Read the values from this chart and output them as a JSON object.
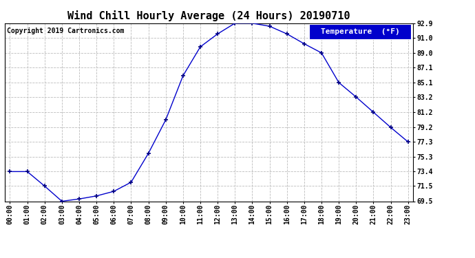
{
  "title": "Wind Chill Hourly Average (24 Hours) 20190710",
  "copyright": "Copyright 2019 Cartronics.com",
  "legend_label": "Temperature  (°F)",
  "hours": [
    0,
    1,
    2,
    3,
    4,
    5,
    6,
    7,
    8,
    9,
    10,
    11,
    12,
    13,
    14,
    15,
    16,
    17,
    18,
    19,
    20,
    21,
    22,
    23
  ],
  "x_labels": [
    "00:00",
    "01:00",
    "02:00",
    "03:00",
    "04:00",
    "05:00",
    "06:00",
    "07:00",
    "08:00",
    "09:00",
    "10:00",
    "11:00",
    "12:00",
    "13:00",
    "14:00",
    "15:00",
    "16:00",
    "17:00",
    "18:00",
    "19:00",
    "20:00",
    "21:00",
    "22:00",
    "23:00"
  ],
  "values": [
    73.4,
    73.4,
    71.5,
    69.5,
    69.8,
    70.2,
    70.8,
    72.0,
    75.8,
    80.2,
    86.0,
    89.8,
    91.5,
    92.9,
    92.9,
    92.5,
    91.5,
    90.2,
    89.0,
    85.1,
    83.2,
    81.2,
    79.2,
    77.3
  ],
  "y_ticks": [
    69.5,
    71.5,
    73.4,
    75.3,
    77.3,
    79.2,
    81.2,
    83.2,
    85.1,
    87.1,
    89.0,
    91.0,
    92.9
  ],
  "ylim": [
    69.5,
    92.9
  ],
  "xlim": [
    -0.3,
    23.3
  ],
  "line_color": "#0000cc",
  "marker": "+",
  "marker_color": "#000080",
  "grid_color": "#bbbbbb",
  "background_color": "#ffffff",
  "title_fontsize": 11,
  "copyright_fontsize": 7,
  "tick_fontsize": 7,
  "legend_bg": "#0000cc",
  "legend_fg": "#ffffff",
  "legend_fontsize": 8
}
